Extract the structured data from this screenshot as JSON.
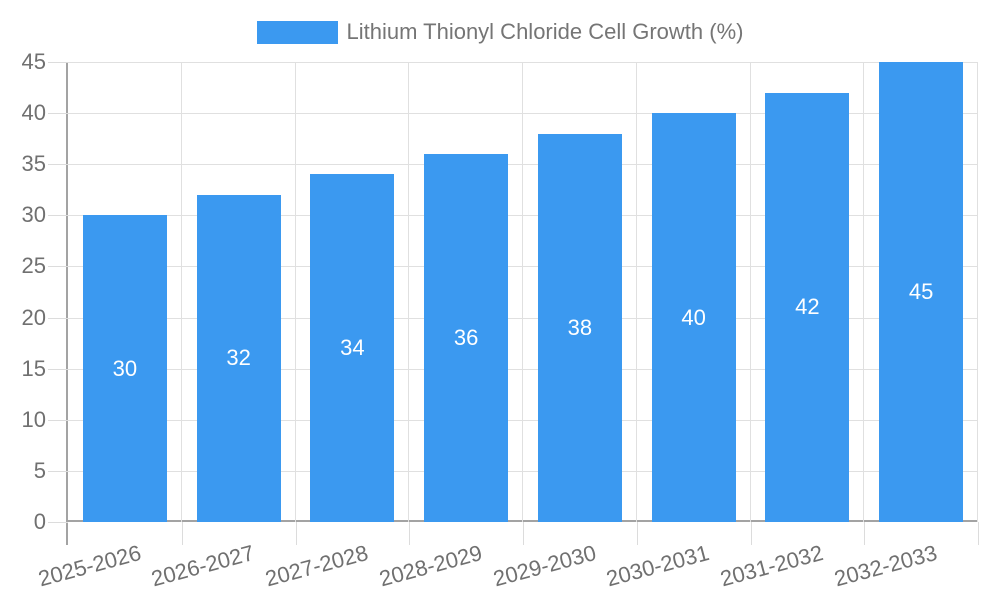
{
  "legend": {
    "label": "Lithium Thionyl Chloride Cell Growth (%)"
  },
  "chart_data": {
    "type": "bar",
    "title": "Lithium Thionyl Chloride Cell Growth (%)",
    "categories": [
      "2025-2026",
      "2026-2027",
      "2027-2028",
      "2028-2029",
      "2029-2030",
      "2030-2031",
      "2031-2032",
      "2032-2033"
    ],
    "values": [
      30,
      32,
      34,
      36,
      38,
      40,
      42,
      45
    ],
    "xlabel": "",
    "ylabel": "",
    "ylim": [
      0,
      45
    ],
    "ytick_step": 5,
    "yticks": [
      0,
      5,
      10,
      15,
      20,
      25,
      30,
      35,
      40,
      45
    ],
    "grid": true,
    "legend_position": "top-center",
    "bar_color": "#3B99F0",
    "value_label_color": "#FFFFFF",
    "axis_color": "#A3A3A3",
    "gridline_color": "#E0E0E0",
    "tick_label_color": "#707070",
    "legend_text_color": "#757575"
  }
}
